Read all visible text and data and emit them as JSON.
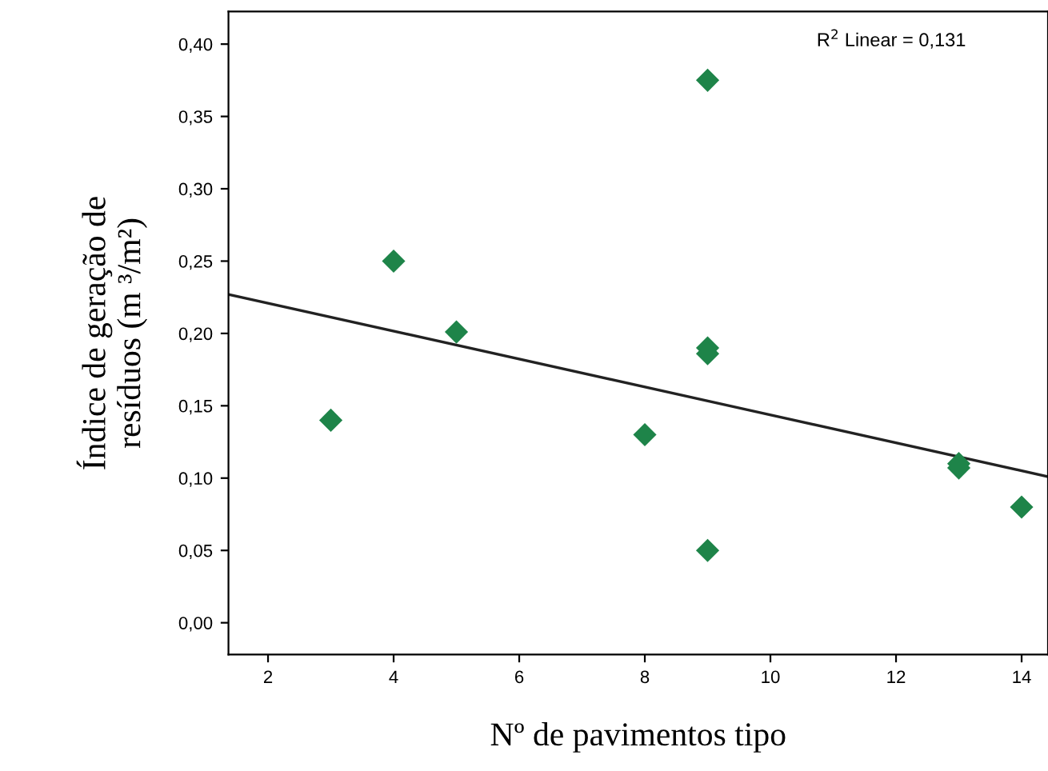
{
  "chart_data": {
    "type": "scatter",
    "xlabel": "Nº de pavimentos tipo",
    "ylabel": "Índice de geração de\nresíduos (m ³/m²)",
    "annotations": [
      "R$^{2}$ Linear = 0,131"
    ],
    "xlim": [
      1.37,
      14.42
    ],
    "ylim": [
      -0.022,
      0.4225
    ],
    "xticks": [
      2,
      4,
      6,
      8,
      10,
      12,
      14
    ],
    "yticks": [
      {
        "value": 0.0,
        "label": "0,00"
      },
      {
        "value": 0.05,
        "label": "0,05"
      },
      {
        "value": 0.1,
        "label": "0,10"
      },
      {
        "value": 0.15,
        "label": "0,15"
      },
      {
        "value": 0.2,
        "label": "0,20"
      },
      {
        "value": 0.25,
        "label": "0,25"
      },
      {
        "value": 0.3,
        "label": "0,30"
      },
      {
        "value": 0.35,
        "label": "0,35"
      },
      {
        "value": 0.4,
        "label": "0,40"
      }
    ],
    "grid": false,
    "marker": "diamond",
    "series": [
      {
        "color": "#1e8449",
        "x": [
          3,
          4,
          5,
          8,
          9,
          9,
          9,
          9,
          13,
          13,
          14
        ],
        "values": [
          0.14,
          0.25,
          0.201,
          0.13,
          0.375,
          0.19,
          0.186,
          0.05,
          0.11,
          0.107,
          0.08
        ]
      },
      {
        "type": "line",
        "color": "#222222",
        "x": [
          1.37,
          14.42
        ],
        "values": [
          0.227,
          0.101
        ],
        "marker": "none"
      }
    ]
  }
}
